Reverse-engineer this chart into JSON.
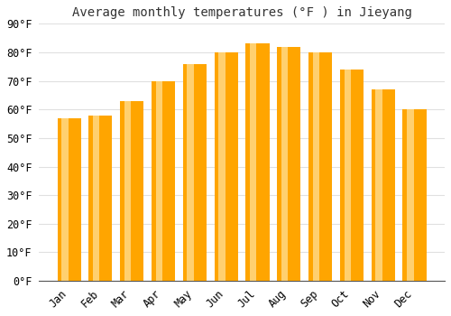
{
  "title": "Average monthly temperatures (°F ) in Jieyang",
  "months": [
    "Jan",
    "Feb",
    "Mar",
    "Apr",
    "May",
    "Jun",
    "Jul",
    "Aug",
    "Sep",
    "Oct",
    "Nov",
    "Dec"
  ],
  "values": [
    57,
    58,
    63,
    70,
    76,
    80,
    83,
    82,
    80,
    74,
    67,
    60
  ],
  "bar_color_main": "#FFA500",
  "bar_color_light": "#FFD070",
  "background_color": "#ffffff",
  "grid_color": "#e0e0e0",
  "ylim": [
    0,
    90
  ],
  "yticks": [
    0,
    10,
    20,
    30,
    40,
    50,
    60,
    70,
    80,
    90
  ],
  "title_fontsize": 10,
  "tick_fontsize": 8.5,
  "bar_width": 0.75
}
